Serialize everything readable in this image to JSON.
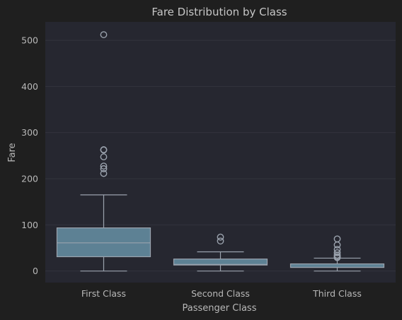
{
  "chart_data": {
    "type": "box",
    "title": "Fare Distribution by Class",
    "xlabel": "Passenger Class",
    "ylabel": "Fare",
    "ylim": [
      -25,
      540
    ],
    "yticks": [
      0,
      100,
      200,
      300,
      400,
      500
    ],
    "grid": true,
    "categories": [
      "First Class",
      "Second Class",
      "Third Class"
    ],
    "boxes": [
      {
        "category": "First Class",
        "whisker_low": 0,
        "q1": 31,
        "median": 61,
        "q3": 93.5,
        "whisker_high": 165,
        "outliers": [
          211.5,
          221.8,
          227.5,
          247.5,
          262.4,
          263,
          512.3
        ]
      },
      {
        "category": "Second Class",
        "whisker_low": 0,
        "q1": 13,
        "median": 14.3,
        "q3": 26,
        "whisker_high": 41.6,
        "outliers": [
          65,
          73.5
        ]
      },
      {
        "category": "Third Class",
        "whisker_low": 0,
        "q1": 7.75,
        "median": 8.05,
        "q3": 15.5,
        "whisker_high": 27.9,
        "outliers": [
          29.1,
          31.3,
          34.4,
          39.7,
          46.9,
          56.5,
          69.55
        ]
      }
    ],
    "colors": {
      "figure_bg": "#1f1f1f",
      "axes_bg": "#262730",
      "grid": "#33343d",
      "box_fill": "#5d8194",
      "box_edge": "#9aa2ad",
      "text": "#b8b8b8",
      "title": "#c6c6c6"
    }
  }
}
